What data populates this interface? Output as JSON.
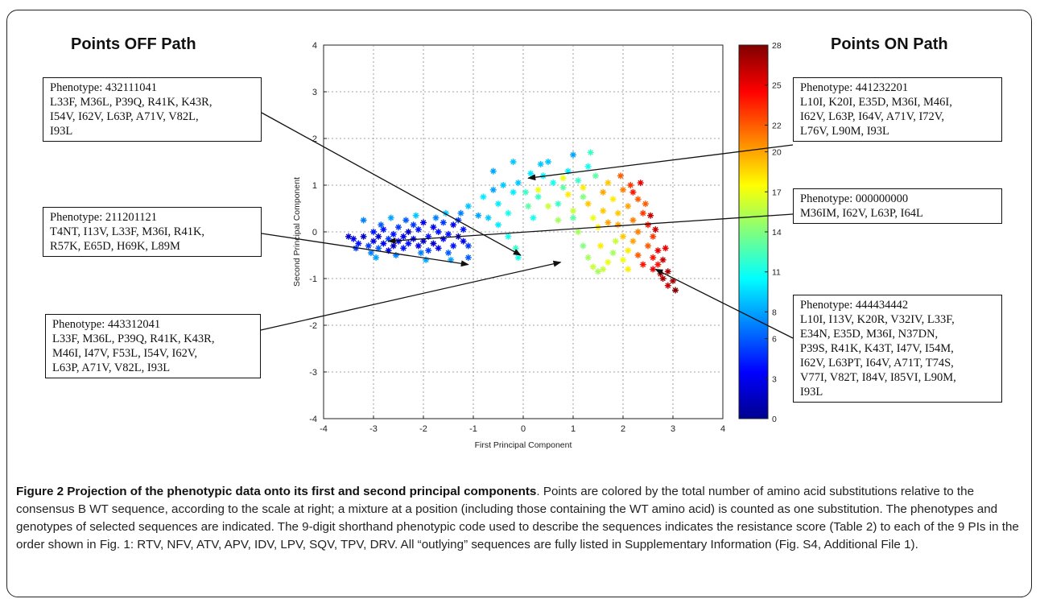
{
  "sections": {
    "off_title": "Points OFF Path",
    "on_title": "Points ON Path"
  },
  "boxes": {
    "off1": [
      "Phenotype: 432111041",
      "L33F, M36L, P39Q, R41K, K43R,",
      "I54V, I62V, L63P, A71V, V82L,",
      "I93L"
    ],
    "off2": [
      "Phenotype: 211201121",
      "T4NT, I13V, L33F, M36I, R41K,",
      "R57K, E65D, H69K, L89M"
    ],
    "off3": [
      "Phenotype: 443312041",
      "L33F, M36L, P39Q, R41K, K43R,",
      "M46I, I47V, F53L, I54V, I62V,",
      "L63P, A71V, V82L, I93L"
    ],
    "on1": [
      "Phenotype: 441232201",
      "L10I, K20I, E35D, M36I, M46I,",
      "I62V, L63P, I64V, A71V, I72V,",
      "L76V, L90M, I93L"
    ],
    "on2": [
      "Phenotype: 000000000",
      "M36IM, I62V, L63P, I64L"
    ],
    "on3": [
      "Phenotype: 444434442",
      "L10I, I13V, K20R, V32IV, L33F,",
      "E34N,  E35D, M36I, N37DN,",
      "P39S, R41K, K43T, I47V, I54M,",
      "I62V, L63PT, I64V, A71T, T74S,",
      "V77I, V82T, I84V, I85VI, L90M,",
      "I93L"
    ]
  },
  "caption": {
    "label": "Figure 2 Projection of the phenotypic data onto its first and second principal components",
    "text": ". Points are colored by the total number of amino acid substitutions relative to the consensus B WT sequence, according to the scale at right; a mixture at a position (including those containing the WT amino acid) is counted as one substitution. The phenotypes and genotypes of selected sequences are indicated. The 9-digit shorthand phenotypic code used to describe the sequences indicates the resistance score (Table 2) to each of the 9 PIs in the order shown in Fig. 1: RTV, NFV, ATV, APV, IDV, LPV, SQV, TPV, DRV. All “outlying” sequences are fully listed in Supplementary Information (Fig. S4, Additional File 1)."
  },
  "chart_data": {
    "type": "scatter",
    "xlabel": "First Principal Component",
    "ylabel": "Second Principal Component",
    "xlim": [
      -4,
      4
    ],
    "ylim": [
      -4,
      4
    ],
    "xticks": [
      "-4",
      "-3",
      "-2",
      "-1",
      "0",
      "1",
      "2",
      "3",
      "4"
    ],
    "yticks": [
      "-4",
      "-3",
      "-2",
      "-1",
      "0",
      "1",
      "2",
      "3",
      "4"
    ],
    "grid": true,
    "marker": "asterisk",
    "colormap": "jet",
    "colorbar": {
      "min": 0,
      "max": 28,
      "ticks": [
        "0",
        "3",
        "6",
        "8",
        "11",
        "14",
        "17",
        "20",
        "22",
        "25",
        "28"
      ]
    },
    "points": [
      [
        -3.4,
        -0.15,
        3
      ],
      [
        -3.3,
        -0.25,
        4
      ],
      [
        -3.2,
        -0.1,
        2
      ],
      [
        -3.1,
        -0.3,
        5
      ],
      [
        -3.0,
        -0.2,
        3
      ],
      [
        -3.0,
        0.0,
        4
      ],
      [
        -2.9,
        -0.35,
        6
      ],
      [
        -2.9,
        -0.1,
        2
      ],
      [
        -2.8,
        -0.25,
        3
      ],
      [
        -2.8,
        0.05,
        4
      ],
      [
        -2.7,
        -0.15,
        5
      ],
      [
        -2.7,
        -0.4,
        3
      ],
      [
        -2.6,
        -0.05,
        4
      ],
      [
        -2.6,
        -0.3,
        2
      ],
      [
        -2.5,
        -0.2,
        3
      ],
      [
        -2.5,
        0.1,
        5
      ],
      [
        -2.4,
        -0.35,
        4
      ],
      [
        -2.4,
        -0.1,
        3
      ],
      [
        -2.3,
        0.0,
        2
      ],
      [
        -2.3,
        -0.25,
        4
      ],
      [
        -2.2,
        -0.15,
        3
      ],
      [
        -2.2,
        0.15,
        5
      ],
      [
        -2.1,
        -0.3,
        3
      ],
      [
        -2.1,
        0.05,
        4
      ],
      [
        -2.0,
        -0.2,
        2
      ],
      [
        -2.0,
        0.2,
        3
      ],
      [
        -1.9,
        -0.1,
        4
      ],
      [
        -1.9,
        -0.4,
        5
      ],
      [
        -1.8,
        0.1,
        3
      ],
      [
        -1.8,
        -0.25,
        2
      ],
      [
        -1.7,
        0.0,
        4
      ],
      [
        -1.7,
        -0.35,
        3
      ],
      [
        -1.6,
        0.2,
        5
      ],
      [
        -1.6,
        -0.15,
        3
      ],
      [
        -1.5,
        -0.05,
        4
      ],
      [
        -1.5,
        -0.45,
        6
      ],
      [
        -1.4,
        0.15,
        3
      ],
      [
        -1.4,
        -0.3,
        4
      ],
      [
        -1.3,
        -0.1,
        2
      ],
      [
        -1.3,
        0.25,
        5
      ],
      [
        -1.2,
        -0.2,
        3
      ],
      [
        -1.2,
        0.05,
        4
      ],
      [
        -1.1,
        -0.55,
        6
      ],
      [
        -1.1,
        -0.3,
        5
      ],
      [
        -3.5,
        -0.1,
        2
      ],
      [
        -3.35,
        -0.35,
        5
      ],
      [
        -3.05,
        -0.45,
        7
      ],
      [
        -2.85,
        0.15,
        6
      ],
      [
        -2.55,
        -0.5,
        7
      ],
      [
        -2.35,
        0.25,
        6
      ],
      [
        -2.05,
        -0.45,
        7
      ],
      [
        -1.75,
        0.3,
        7
      ],
      [
        -1.45,
        -0.6,
        8
      ],
      [
        -1.25,
        0.4,
        7
      ],
      [
        -2.65,
        0.3,
        8
      ],
      [
        -2.15,
        0.35,
        9
      ],
      [
        -1.95,
        -0.6,
        8
      ],
      [
        -1.55,
        0.4,
        9
      ],
      [
        -3.2,
        0.25,
        7
      ],
      [
        -2.95,
        -0.55,
        8
      ],
      [
        -1.1,
        0.55,
        9
      ],
      [
        -0.9,
        0.35,
        8
      ],
      [
        -0.8,
        0.75,
        10
      ],
      [
        -0.7,
        0.3,
        9
      ],
      [
        -0.6,
        0.9,
        8
      ],
      [
        -0.5,
        0.6,
        10
      ],
      [
        -0.4,
        1.0,
        9
      ],
      [
        -0.3,
        0.4,
        11
      ],
      [
        -0.2,
        0.85,
        10
      ],
      [
        -0.1,
        1.05,
        9
      ],
      [
        -0.5,
        0.15,
        10
      ],
      [
        -0.3,
        -0.1,
        11
      ],
      [
        -0.15,
        -0.35,
        12
      ],
      [
        -0.1,
        -0.55,
        11
      ],
      [
        -0.6,
        1.3,
        8
      ],
      [
        -0.2,
        1.5,
        9
      ],
      [
        0.05,
        0.85,
        12
      ],
      [
        0.1,
        0.55,
        13
      ],
      [
        0.2,
        0.3,
        11
      ],
      [
        0.3,
        0.75,
        12
      ],
      [
        0.4,
        1.2,
        10
      ],
      [
        0.5,
        1.5,
        9
      ],
      [
        0.6,
        1.05,
        11
      ],
      [
        0.7,
        0.6,
        12
      ],
      [
        0.8,
        0.95,
        13
      ],
      [
        0.9,
        1.3,
        10
      ],
      [
        1.0,
        1.65,
        8
      ],
      [
        1.1,
        1.1,
        12
      ],
      [
        1.2,
        0.75,
        14
      ],
      [
        1.3,
        1.4,
        11
      ],
      [
        1.35,
        1.7,
        12
      ],
      [
        1.45,
        1.2,
        13
      ],
      [
        0.15,
        1.25,
        10
      ],
      [
        0.35,
        1.45,
        9
      ],
      [
        1.0,
        0.3,
        13
      ],
      [
        0.3,
        0.9,
        17
      ],
      [
        0.5,
        0.55,
        16
      ],
      [
        0.7,
        0.25,
        15
      ],
      [
        0.8,
        1.15,
        17
      ],
      [
        0.9,
        0.8,
        18
      ],
      [
        1.0,
        0.45,
        16
      ],
      [
        1.1,
        0.0,
        15
      ],
      [
        1.2,
        -0.3,
        14
      ],
      [
        1.3,
        -0.55,
        15
      ],
      [
        1.4,
        -0.75,
        16
      ],
      [
        1.5,
        -0.85,
        15
      ],
      [
        1.6,
        -0.8,
        16
      ],
      [
        1.7,
        -0.65,
        17
      ],
      [
        1.8,
        -0.45,
        15
      ],
      [
        1.85,
        -0.2,
        16
      ],
      [
        1.2,
        0.95,
        18
      ],
      [
        1.3,
        0.6,
        19
      ],
      [
        1.4,
        0.3,
        17
      ],
      [
        1.5,
        0.1,
        18
      ],
      [
        1.6,
        0.45,
        19
      ],
      [
        1.6,
        0.85,
        20
      ],
      [
        1.7,
        1.05,
        19
      ],
      [
        1.8,
        0.7,
        18
      ],
      [
        1.9,
        0.4,
        19
      ],
      [
        1.9,
        0.15,
        20
      ],
      [
        2.0,
        0.9,
        21
      ],
      [
        2.0,
        -0.1,
        19
      ],
      [
        2.1,
        0.55,
        20
      ],
      [
        2.1,
        -0.4,
        18
      ],
      [
        2.0,
        -0.6,
        17
      ],
      [
        2.1,
        -0.8,
        18
      ],
      [
        2.2,
        0.25,
        21
      ],
      [
        2.2,
        -0.2,
        20
      ],
      [
        1.95,
        1.2,
        22
      ],
      [
        2.15,
        1.0,
        23
      ],
      [
        2.3,
        0.7,
        22
      ],
      [
        2.3,
        0.0,
        21
      ],
      [
        2.3,
        -0.5,
        22
      ],
      [
        2.4,
        -0.7,
        24
      ],
      [
        2.4,
        0.4,
        23
      ],
      [
        2.5,
        0.15,
        24
      ],
      [
        2.5,
        -0.3,
        22
      ],
      [
        2.6,
        -0.1,
        23
      ],
      [
        2.6,
        -0.55,
        24
      ],
      [
        2.6,
        -0.8,
        25
      ],
      [
        2.7,
        -0.4,
        25
      ],
      [
        2.7,
        -0.7,
        24
      ],
      [
        2.75,
        -0.9,
        26
      ],
      [
        2.8,
        -0.6,
        26
      ],
      [
        2.8,
        -1.0,
        27
      ],
      [
        2.9,
        -0.85,
        27
      ],
      [
        2.9,
        -1.15,
        26
      ],
      [
        3.0,
        -1.05,
        27
      ],
      [
        3.05,
        -1.25,
        28
      ],
      [
        2.85,
        -0.35,
        25
      ],
      [
        2.45,
        0.6,
        22
      ],
      [
        2.2,
        0.85,
        24
      ],
      [
        2.35,
        1.05,
        25
      ],
      [
        1.7,
        0.2,
        20
      ],
      [
        1.55,
        -0.3,
        18
      ],
      [
        2.55,
        0.35,
        26
      ],
      [
        2.65,
        0.05,
        26
      ]
    ]
  },
  "colors": {
    "frame": "#222222",
    "text": "#111111",
    "grid": "#888888",
    "arrow": "#111111"
  }
}
